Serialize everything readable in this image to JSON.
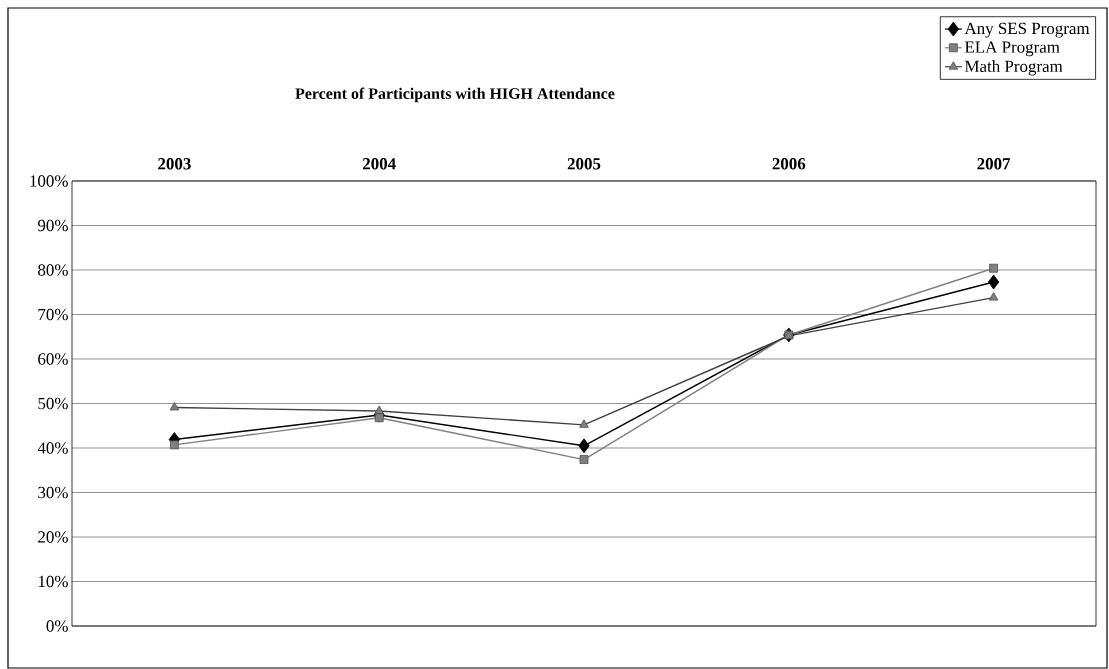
{
  "chart_data": {
    "type": "line",
    "title": "Percent of Participants with HIGH Attendance",
    "categories": [
      "2003",
      "2004",
      "2005",
      "2006",
      "2007"
    ],
    "series": [
      {
        "name": "Any SES Program",
        "color": "#000000",
        "marker": "diamond",
        "values": [
          41.9,
          47.4,
          40.5,
          65.4,
          77.3
        ]
      },
      {
        "name": "ELA Program",
        "color": "#808080",
        "marker": "square",
        "values": [
          40.7,
          46.8,
          37.4,
          65.4,
          80.4
        ]
      },
      {
        "name": "Math Program",
        "color": "#404040",
        "marker": "triangle",
        "values": [
          49.1,
          48.3,
          45.2,
          65.2,
          73.8
        ]
      }
    ],
    "ylim": [
      0,
      100
    ],
    "yticks": [
      {
        "value": 0,
        "label": "0%"
      },
      {
        "value": 10,
        "label": "10%"
      },
      {
        "value": 20,
        "label": "20%"
      },
      {
        "value": 30,
        "label": "30%"
      },
      {
        "value": 40,
        "label": "40%"
      },
      {
        "value": 50,
        "label": "50%"
      },
      {
        "value": 60,
        "label": "60%"
      },
      {
        "value": 70,
        "label": "70%"
      },
      {
        "value": 80,
        "label": "80%"
      },
      {
        "value": 90,
        "label": "90%"
      },
      {
        "value": 100,
        "label": "100%"
      }
    ],
    "grid": "y",
    "legend": "top right"
  }
}
